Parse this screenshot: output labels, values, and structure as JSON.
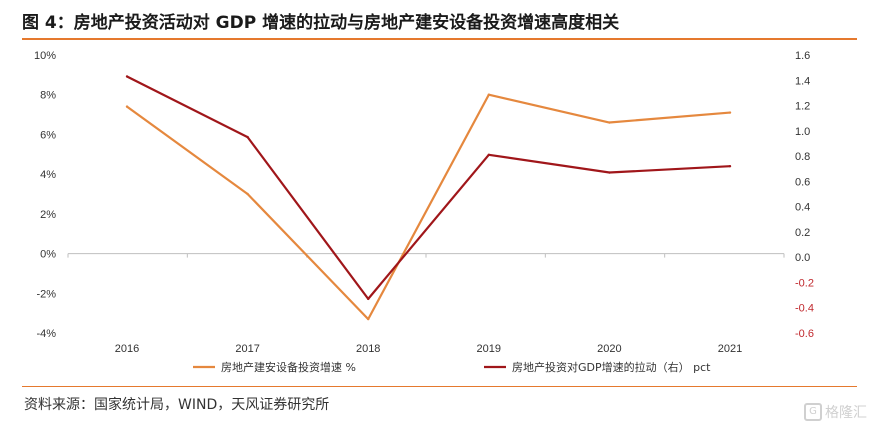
{
  "figure": {
    "title": "图 4：房地产投资活动对 GDP 增速的拉动与房地产建安设备投资增速高度相关",
    "source": "资料来源：国家统计局，WIND，天风证券研究所",
    "watermark": "格隆汇",
    "watermark_icon": "G"
  },
  "chart_data": {
    "type": "line",
    "categories": [
      "2016",
      "2017",
      "2018",
      "2019",
      "2020",
      "2021"
    ],
    "y_left": {
      "min": -4,
      "max": 10,
      "step": 2,
      "ticks": [
        "-4%",
        "-2%",
        "0%",
        "2%",
        "4%",
        "6%",
        "8%",
        "10%"
      ]
    },
    "y_right": {
      "min": -0.6,
      "max": 1.6,
      "step": 0.2,
      "ticks": [
        "-0.6",
        "-0.4",
        "-0.2",
        "0.0",
        "0.2",
        "0.4",
        "0.6",
        "0.8",
        "1.0",
        "1.2",
        "1.4",
        "1.6"
      ]
    },
    "series": [
      {
        "name": "房地产建安设备投资增速 %",
        "axis": "left",
        "color": "#e5883e",
        "values": [
          7.4,
          3.0,
          -3.3,
          8.0,
          6.6,
          7.1
        ]
      },
      {
        "name": "房地产投资对GDP增速的拉动（右） pct",
        "axis": "right",
        "color": "#a0161a",
        "values": [
          1.43,
          0.95,
          -0.33,
          0.81,
          0.67,
          0.72
        ]
      }
    ],
    "colors": {
      "negative_tick": "#c0282d",
      "axis_text": "#333333",
      "accent": "#e5792e"
    },
    "grid": false,
    "legend_position": "bottom"
  }
}
